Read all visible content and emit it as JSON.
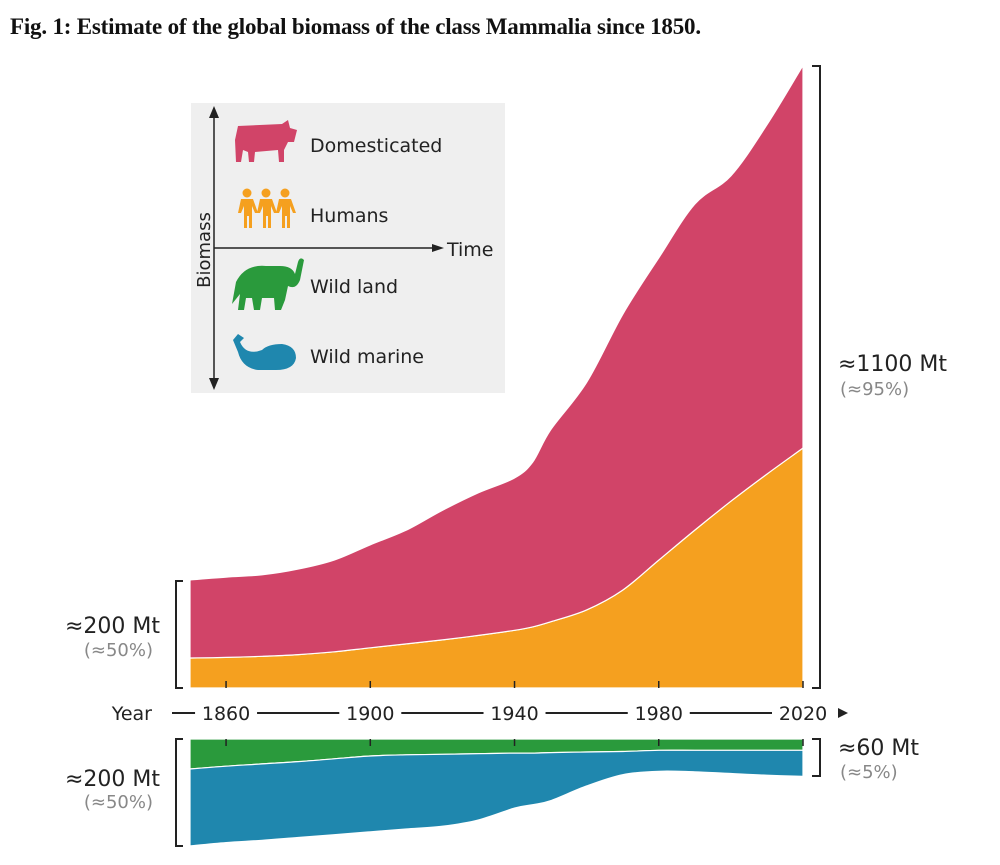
{
  "title": "Fig. 1: Estimate of the global biomass of the class Mammalia since 1850.",
  "chart_data": {
    "type": "area",
    "stacked": true,
    "title": "Fig. 1: Estimate of the global biomass of the class Mammalia since 1850.",
    "xlabel": "Year",
    "x_ticks": [
      1860,
      1900,
      1940,
      1980,
      2020
    ],
    "xlim": [
      1850,
      2020
    ],
    "unit": "Mt",
    "grid": false,
    "x": [
      1850,
      1860,
      1870,
      1880,
      1890,
      1900,
      1910,
      1920,
      1930,
      1940,
      1945,
      1950,
      1960,
      1970,
      1980,
      1990,
      2000,
      2010,
      2020
    ],
    "upper_panel": {
      "series": [
        {
          "name": "Humans",
          "color": "#f5a01f",
          "values": [
            53,
            54,
            56,
            59,
            64,
            71,
            78,
            85,
            93,
            102,
            108,
            117,
            138,
            173,
            226,
            279,
            330,
            378,
            424
          ]
        },
        {
          "name": "Domesticated",
          "color": "#d14468",
          "values": [
            138,
            142,
            144,
            151,
            162,
            182,
            201,
            229,
            252,
            269,
            291,
            339,
            402,
            487,
            534,
            576,
            575,
            617,
            676
          ]
        }
      ],
      "annotations": [
        {
          "side": "left",
          "value": "≈200 Mt",
          "share": "(≈50%)"
        },
        {
          "side": "right",
          "value": "≈1100 Mt",
          "share": "(≈95%)"
        }
      ]
    },
    "lower_panel": {
      "direction": "downward",
      "series": [
        {
          "name": "Wild land",
          "color": "#2a9a3c",
          "values": [
            53,
            48,
            44,
            40,
            35,
            30,
            28,
            27,
            26,
            25,
            25,
            24,
            23,
            22,
            20,
            20,
            20,
            20,
            20
          ]
        },
        {
          "name": "Wild marine",
          "color": "#1f87ae",
          "values": [
            136,
            135,
            135,
            134,
            134,
            134,
            131,
            127,
            117,
            97,
            91,
            85,
            60,
            41,
            37,
            38,
            41,
            44,
            46
          ]
        }
      ],
      "annotations": [
        {
          "side": "left",
          "value": "≈200 Mt",
          "share": "(≈50%)"
        },
        {
          "side": "right",
          "value": "≈60 Mt",
          "share": "(≈5%)"
        }
      ]
    },
    "legend": {
      "placement": "top-left",
      "y_axis_label": "Biomass",
      "x_axis_label": "Time",
      "entries": [
        {
          "label": "Domesticated",
          "icon": "cow-icon",
          "color": "#d14468"
        },
        {
          "label": "Humans",
          "icon": "humans-icon",
          "color": "#f5a01f"
        },
        {
          "label": "Wild land",
          "icon": "elephant-icon",
          "color": "#2a9a3c"
        },
        {
          "label": "Wild marine",
          "icon": "whale-icon",
          "color": "#1f87ae"
        }
      ]
    }
  }
}
